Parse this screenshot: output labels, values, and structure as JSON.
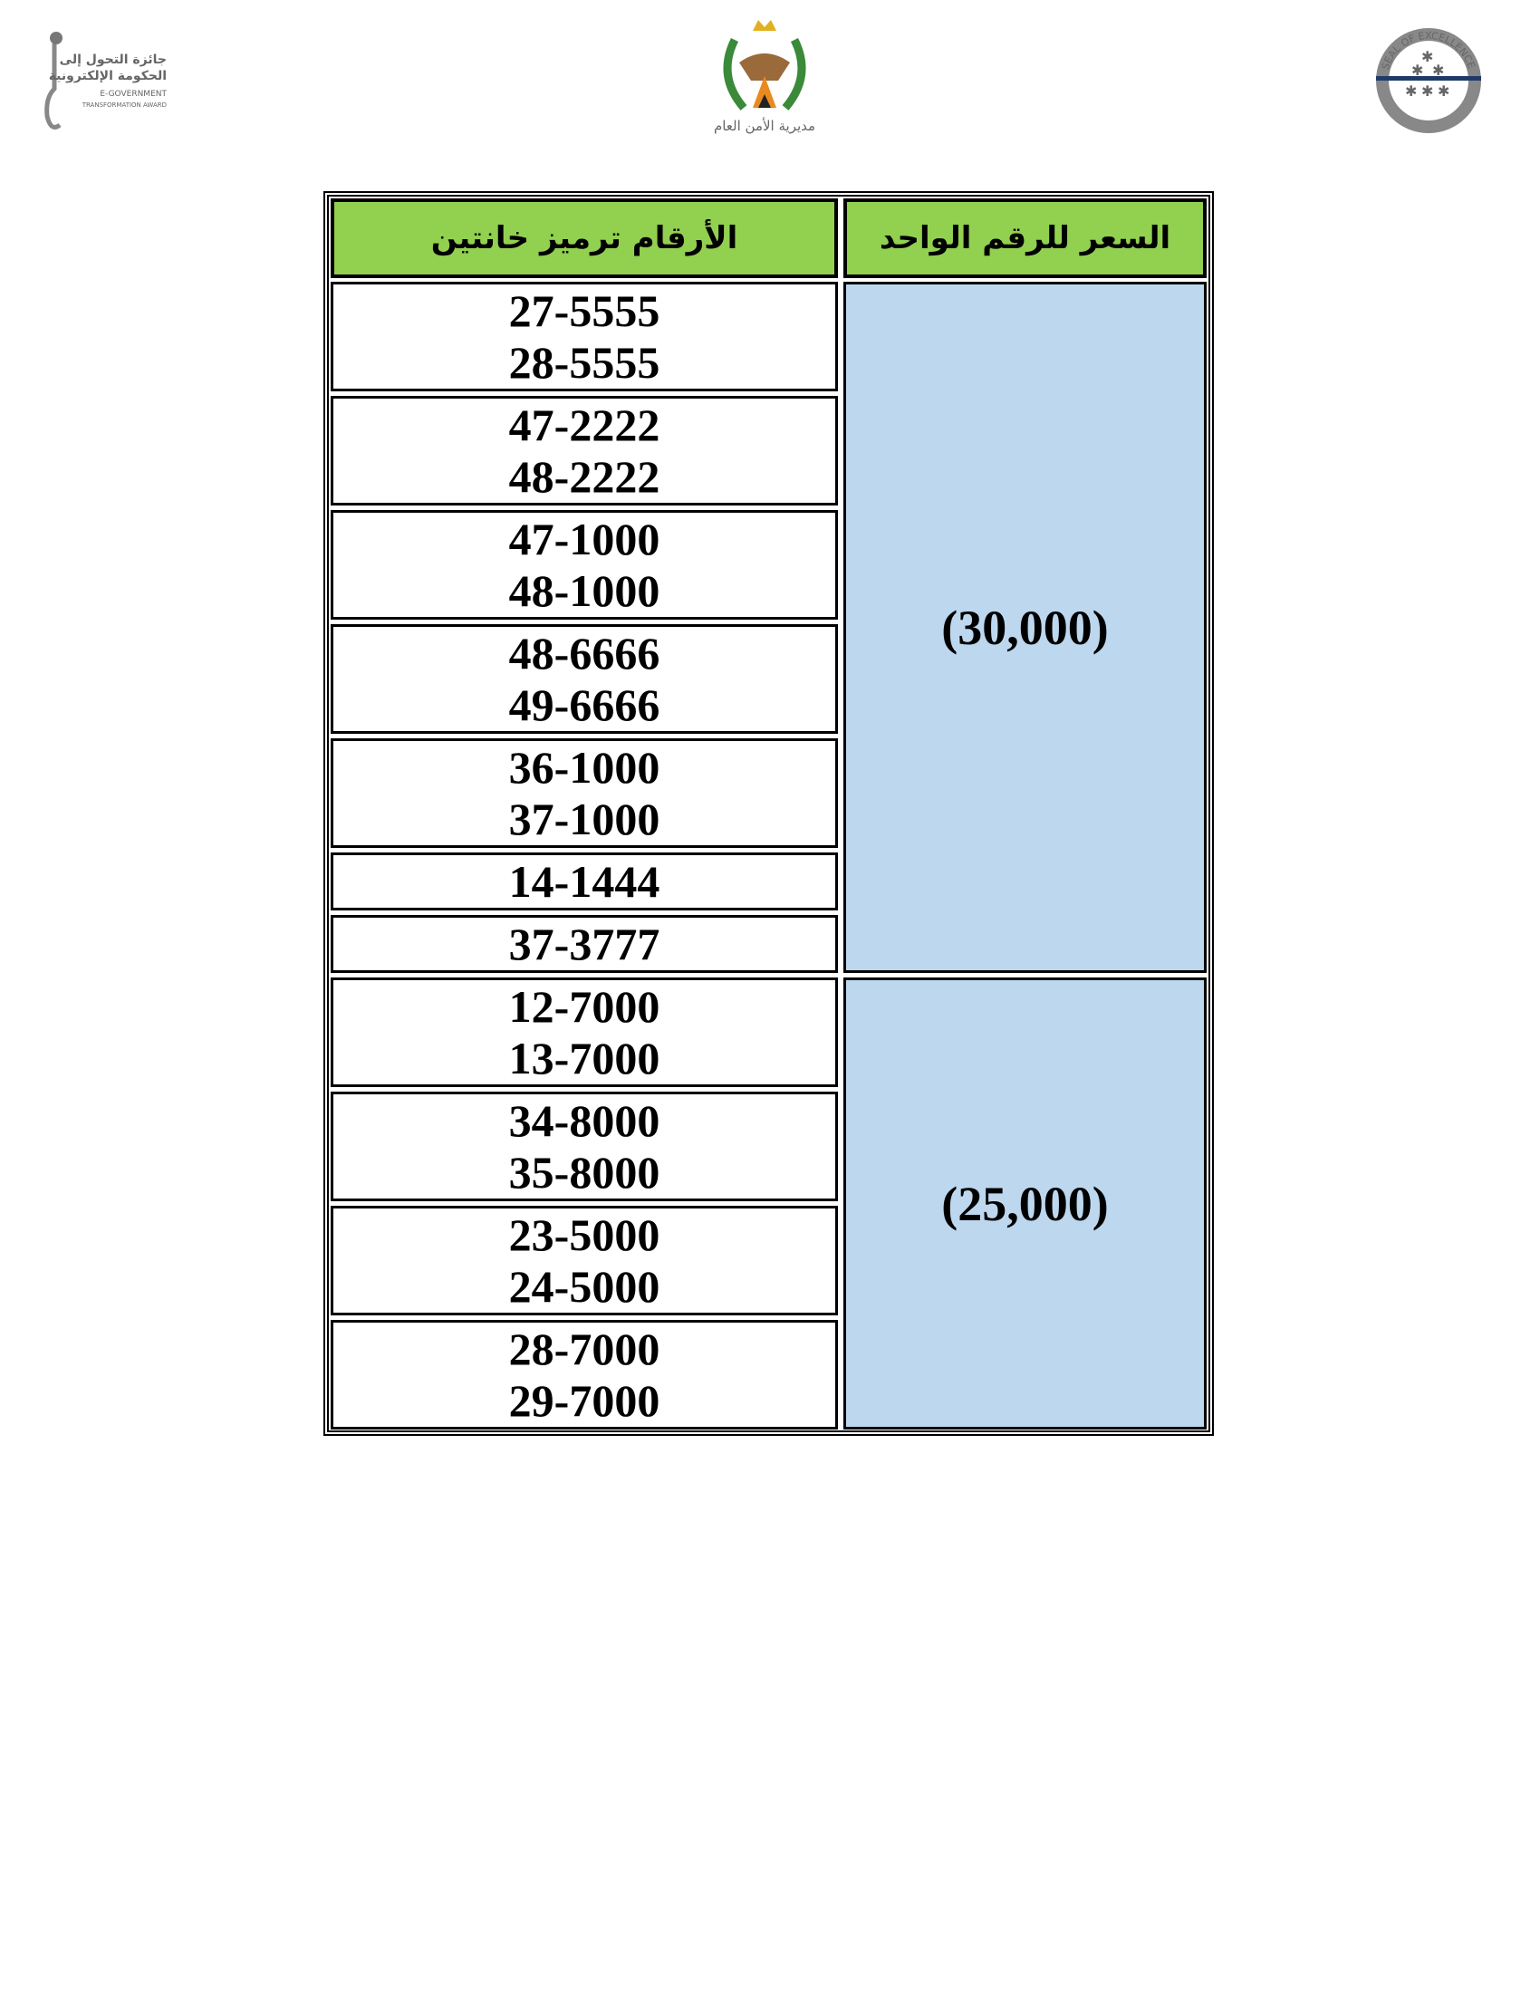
{
  "logos": {
    "left": {
      "name": "e-government-transformation-award-logo",
      "text_ar_1": "جائزة التحول إلى",
      "text_ar_2": "الحكومة الإلكترونية",
      "text_en_1": "E-GOVERNMENT",
      "text_en_2": "TRANSFORMATION AWARD"
    },
    "center": {
      "name": "public-security-directorate-emblem",
      "text_ar": "مديرية الأمن العام"
    },
    "right": {
      "name": "seal-of-excellence-logo",
      "text_en": "SEAL OF EXCELLENCE"
    }
  },
  "table": {
    "headers": {
      "numbers": "الأرقام ترميز خانتين",
      "price": "السعر  للرقم الواحد"
    },
    "groups": [
      {
        "price": "(30,000)",
        "rows": [
          [
            "27-5555",
            "28-5555"
          ],
          [
            "47-2222",
            "48-2222"
          ],
          [
            "47-1000",
            "48-1000"
          ],
          [
            "48-6666",
            "49-6666"
          ],
          [
            "36-1000",
            "37-1000"
          ],
          [
            "14-1444"
          ],
          [
            "37-3777"
          ]
        ]
      },
      {
        "price": "(25,000)",
        "rows": [
          [
            "12-7000",
            "13-7000"
          ],
          [
            "34-8000",
            "35-8000"
          ],
          [
            "23-5000",
            "24-5000"
          ],
          [
            "28-7000",
            "29-7000"
          ]
        ]
      }
    ]
  },
  "colors": {
    "header_bg": "#92d050",
    "price_bg": "#bdd7ee"
  }
}
